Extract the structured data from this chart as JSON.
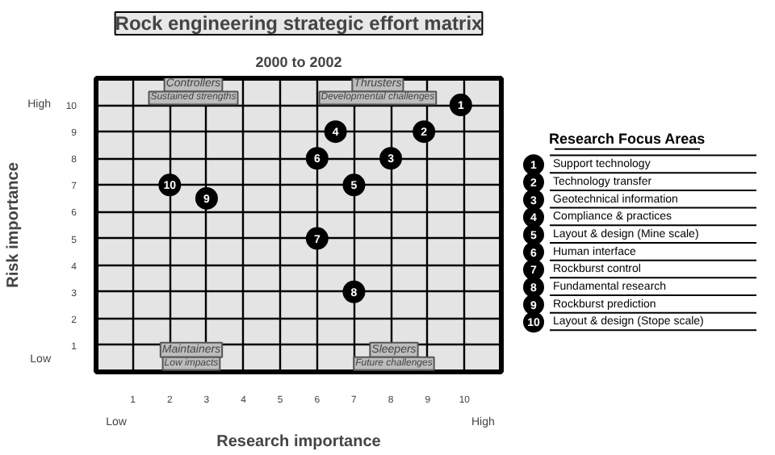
{
  "chart_data": {
    "type": "scatter",
    "title": "Rock engineering strategic effort matrix",
    "subtitle": "2000 to 2002",
    "xlabel": "Research importance",
    "ylabel": "Risk importance",
    "legend_title": "Research Focus Areas",
    "xlim": [
      0,
      11
    ],
    "ylim": [
      0,
      11
    ],
    "xticks": [
      1,
      2,
      3,
      4,
      5,
      6,
      7,
      8,
      9,
      10
    ],
    "yticks": [
      1,
      2,
      3,
      4,
      5,
      6,
      7,
      8,
      9,
      10
    ],
    "grid": true,
    "legend": "right",
    "marker": "circle",
    "series": [
      {
        "name": "Support technology",
        "color": "#000000",
        "x": [
          9.9
        ],
        "values": [
          10
        ]
      },
      {
        "name": "Technology transfer",
        "color": "#000000",
        "x": [
          8.9
        ],
        "values": [
          9
        ]
      },
      {
        "name": "Geotechnical information",
        "color": "#000000",
        "x": [
          8
        ],
        "values": [
          8
        ]
      },
      {
        "name": "Compliance & practices",
        "color": "#000000",
        "x": [
          6.5
        ],
        "values": [
          9
        ]
      },
      {
        "name": "Layout & design (Mine scale)",
        "color": "#000000",
        "x": [
          7
        ],
        "values": [
          7
        ]
      },
      {
        "name": "Human interface",
        "color": "#000000",
        "x": [
          6
        ],
        "values": [
          8
        ]
      },
      {
        "name": "Rockburst control",
        "color": "#000000",
        "x": [
          6
        ],
        "values": [
          5
        ]
      },
      {
        "name": "Fundamental research",
        "color": "#000000",
        "x": [
          7
        ],
        "values": [
          3
        ]
      },
      {
        "name": "Rockburst prediction",
        "color": "#000000",
        "x": [
          3
        ],
        "values": [
          6.5
        ]
      },
      {
        "name": "Layout & design (Stope scale)",
        "color": "#000000",
        "x": [
          2
        ],
        "values": [
          7
        ]
      }
    ],
    "annotations": [
      "Controllers",
      "Sustained strengths",
      "Thrusters",
      "Developmental challenges",
      "Maintainers",
      "Low impacts",
      "Sleepers",
      "Future challenges",
      "High",
      "Low",
      "Low",
      "High",
      {
        "text": "1",
        "x": 9.9,
        "y": 10
      },
      {
        "text": "2",
        "x": 8.9,
        "y": 9
      },
      {
        "text": "3",
        "x": 8,
        "y": 8
      },
      {
        "text": "4",
        "x": 6.5,
        "y": 9
      },
      {
        "text": "5",
        "x": 7,
        "y": 7
      },
      {
        "text": "6",
        "x": 6,
        "y": 8
      },
      {
        "text": "7",
        "x": 6,
        "y": 5
      },
      {
        "text": "8",
        "x": 7,
        "y": 3
      },
      {
        "text": "9",
        "x": 3,
        "y": 6.5
      },
      {
        "text": "10",
        "x": 2,
        "y": 7
      }
    ]
  }
}
